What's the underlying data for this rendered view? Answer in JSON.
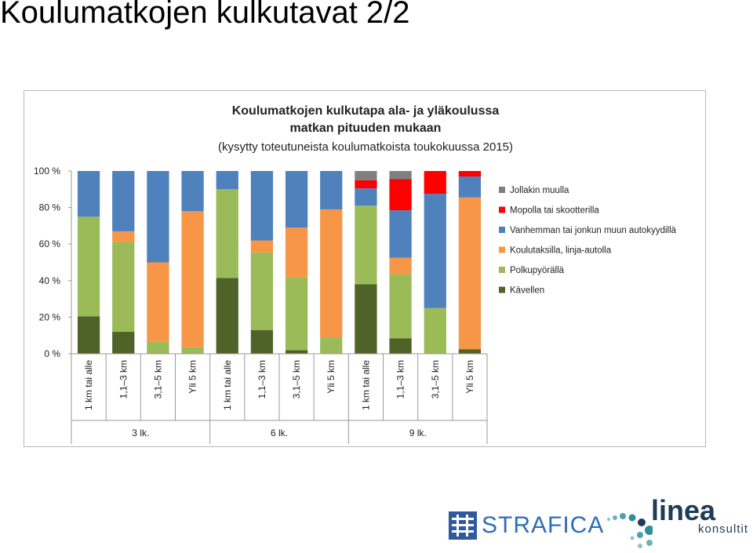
{
  "slide": {
    "title": "Koulumatkojen kulkutavat 2/2"
  },
  "chart_data": {
    "type": "bar",
    "stacked": true,
    "title_lines": [
      "Koulumatkojen kulkutapa ala- ja yläkoulussa",
      "matkan pituuden mukaan"
    ],
    "subtitle": "(kysytty toteutuneista koulumatkoista toukokuussa 2015)",
    "ylim": [
      0,
      100
    ],
    "y_ticks": [
      "0 %",
      "20 %",
      "40 %",
      "60 %",
      "80 %",
      "100 %"
    ],
    "legend_position": "right",
    "grid": false,
    "groups": [
      {
        "name": "3 lk.",
        "categories": [
          "1 km tai alle",
          "1,1–3 km",
          "3,1–5 km",
          "Yli 5 km"
        ]
      },
      {
        "name": "6 lk.",
        "categories": [
          "1 km tai alle",
          "1,1–3 km",
          "3,1–5 km",
          "Yli 5 km"
        ]
      },
      {
        "name": "9 lk.",
        "categories": [
          "1 km tai alle",
          "1,1–3 km",
          "3,1–5 km",
          "Yli 5 km"
        ]
      }
    ],
    "series": [
      {
        "name": "Kävellen",
        "color": "#4f6228",
        "values": [
          20.5,
          12,
          0,
          0,
          41.5,
          13,
          2,
          0,
          38,
          8.5,
          0,
          2.5
        ]
      },
      {
        "name": "Polkupyörällä",
        "color": "#9bbb59",
        "values": [
          54.5,
          49,
          6.5,
          3.5,
          48.5,
          42.5,
          40,
          9,
          43,
          35,
          25,
          0
        ]
      },
      {
        "name": "Koulutaksilla, linja-autolla",
        "color": "#f79646",
        "values": [
          0,
          6,
          43.5,
          74.5,
          0,
          6.5,
          27,
          70,
          0,
          9,
          0,
          83
        ]
      },
      {
        "name": "Vanhemman tai jonkun muun autokyydillä",
        "color": "#4f81bd",
        "values": [
          25,
          33,
          50,
          22,
          10,
          38,
          31,
          21,
          9.5,
          26,
          62.5,
          11.5
        ]
      },
      {
        "name": "Mopolla tai skootterilla",
        "color": "#ff0000",
        "values": [
          0,
          0,
          0,
          0,
          0,
          0,
          0,
          0,
          4.5,
          17,
          12.5,
          3
        ]
      },
      {
        "name": "Jollakin muulla",
        "color": "#808080",
        "values": [
          0,
          0,
          0,
          0,
          0,
          0,
          0,
          0,
          5,
          4.5,
          0,
          0
        ]
      }
    ],
    "legend_order": [
      "Jollakin muulla",
      "Mopolla tai skootterilla",
      "Vanhemman tai jonkun muun autokyydillä",
      "Koulutaksilla, linja-autolla",
      "Polkupyörällä",
      "Kävellen"
    ]
  },
  "logos": {
    "strafica": "STRAFICA",
    "linea_word": "linea",
    "linea_sub": "konsultit",
    "strafica_color": "#2f6db5",
    "linea_color": "#1f3b58",
    "linea_dot_color": "#2a8f96"
  }
}
